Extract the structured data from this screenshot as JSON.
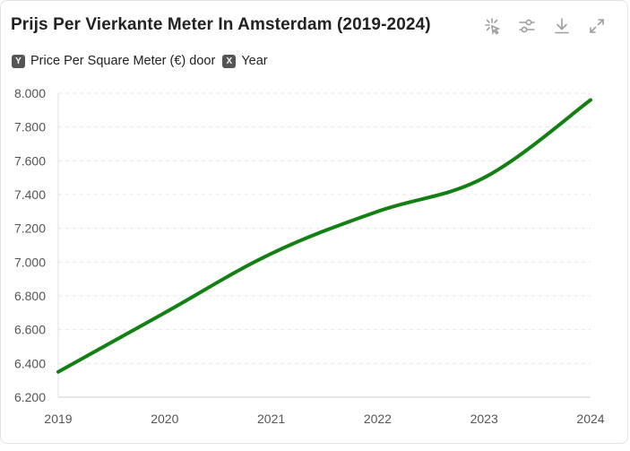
{
  "header": {
    "title": "Prijs Per Vierkante Meter In Amsterdam (2019-2024)"
  },
  "toolbar": {
    "icons": [
      "magic-select-icon",
      "sliders-icon",
      "download-icon",
      "expand-icon"
    ],
    "icon_color": "#9e9e9e"
  },
  "axis_info": {
    "y_badge": "Y",
    "y_label": "Price Per Square Meter (€) door",
    "x_badge": "X",
    "x_label": "Year"
  },
  "chart_data": {
    "type": "line",
    "x": [
      "2019",
      "2020",
      "2021",
      "2022",
      "2023",
      "2024"
    ],
    "series": [
      {
        "values": [
          6350,
          6700,
          7050,
          7300,
          7500,
          7960
        ],
        "color": "#128012"
      }
    ],
    "yticks": [
      "6.200",
      "6.400",
      "6.600",
      "6.800",
      "7.000",
      "7.200",
      "7.400",
      "7.600",
      "7.800",
      "8.000"
    ],
    "ylim": [
      6200,
      8000
    ],
    "grid": true,
    "title": "Prijs Per Vierkante Meter In Amsterdam (2019-2024)"
  }
}
